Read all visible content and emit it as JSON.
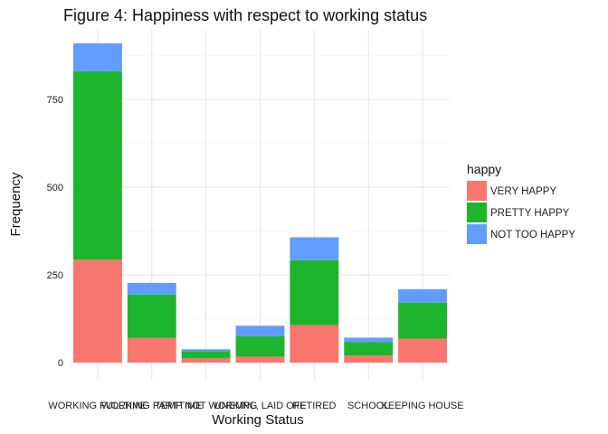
{
  "chart_data": {
    "type": "bar",
    "stacked": true,
    "title": "Figure 4: Happiness with respect to working status",
    "xlabel": "Working Status",
    "ylabel": "Frequency",
    "categories": [
      "WORKING FULLTIME",
      "WORKING PARTTIME",
      "TEMP NOT WORKING",
      "UNEMPL, LAID OFF",
      "RETIRED",
      "SCHOOL",
      "KEEPING HOUSE"
    ],
    "series": [
      {
        "name": "VERY HAPPY",
        "color": "#F8766D",
        "values": [
          293,
          70,
          12,
          17,
          107,
          20,
          68
        ]
      },
      {
        "name": "PRETTY HAPPY",
        "color": "#1DB52D",
        "values": [
          537,
          124,
          20,
          58,
          185,
          38,
          103
        ]
      },
      {
        "name": "NOT TOO HAPPY",
        "color": "#619CFF",
        "values": [
          80,
          33,
          6,
          30,
          65,
          13,
          38
        ]
      }
    ],
    "ylim": [
      0,
      950
    ],
    "yticks": [
      0,
      250,
      500,
      750
    ],
    "grid": true,
    "legend": {
      "title": "happy",
      "position": "right"
    }
  }
}
